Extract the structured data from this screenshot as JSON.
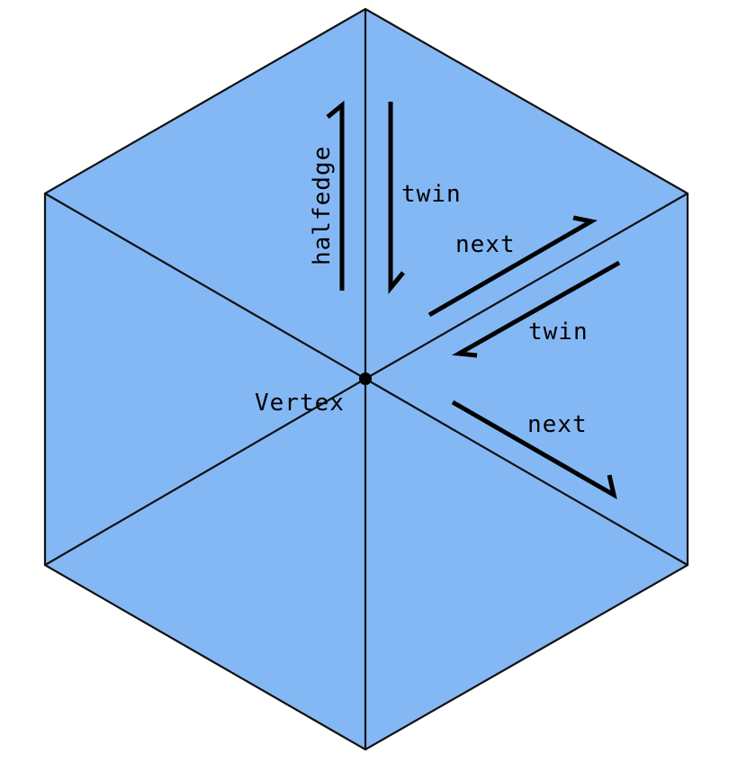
{
  "colors": {
    "face_fill": "#84b8f4",
    "edge_stroke": "#111111",
    "arrow_stroke": "#000000",
    "background": "#ffffff"
  },
  "labels": {
    "halfedge": "halfedge",
    "twin_top": "twin",
    "next_top": "next",
    "twin_right": "twin",
    "next_right": "next",
    "vertex": "Vertex"
  }
}
